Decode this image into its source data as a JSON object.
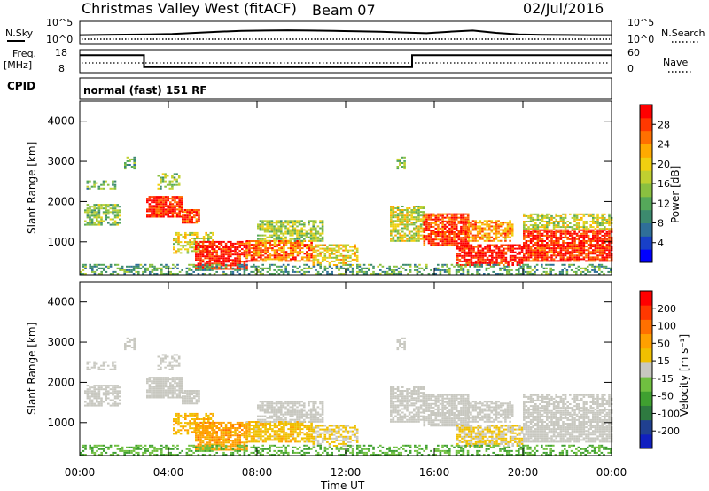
{
  "header": {
    "station": "Christmas Valley West (fitACF)",
    "beam": "Beam 07",
    "date": "02/Jul/2016",
    "cpid_label": "CPID",
    "cpid_value": "normal (fast) 151 RF"
  },
  "panels": {
    "nsky": {
      "left_label": "N.Sky",
      "top_tick": "10^5",
      "bottom_tick": "10^0",
      "right_label": "N.Search",
      "right_top_tick": "10^5",
      "right_bottom_tick": "10^0"
    },
    "freq": {
      "left_label_1": "Freq.",
      "left_label_2": "[MHz]",
      "top_tick": "18",
      "bottom_tick": "8",
      "right_label": "Nave",
      "right_top_tick": "60",
      "right_bottom_tick": "0"
    }
  },
  "chart_data": [
    {
      "type": "heatmap",
      "name": "power",
      "ylabel": "Slant Range [km]",
      "xlabel": "",
      "x_ticks": [
        "00:00",
        "04:00",
        "08:00",
        "12:00",
        "16:00",
        "20:00",
        "00:00"
      ],
      "y_ticks": [
        "1000",
        "2000",
        "3000",
        "4000"
      ],
      "ylim": [
        180,
        4500
      ],
      "xlim_hours": [
        0,
        24
      ],
      "colorbar": {
        "label": "Power [dB]",
        "ticks": [
          "28",
          "24",
          "20",
          "16",
          "12",
          "8",
          "4"
        ],
        "colors": [
          "#0000ff",
          "#1840c8",
          "#2f6f99",
          "#3c8a6e",
          "#55a85a",
          "#8ac040",
          "#c0d030",
          "#f0d010",
          "#ffaa00",
          "#ff7000",
          "#ff3800",
          "#ff0000"
        ]
      }
    },
    {
      "type": "heatmap",
      "name": "velocity",
      "ylabel": "Slant Range [km]",
      "xlabel": "Time UT",
      "x_ticks": [
        "00:00",
        "04:00",
        "08:00",
        "12:00",
        "16:00",
        "20:00",
        "00:00"
      ],
      "y_ticks": [
        "1000",
        "2000",
        "3000",
        "4000"
      ],
      "ylim": [
        180,
        4500
      ],
      "xlim_hours": [
        0,
        24
      ],
      "colorbar": {
        "label": "Velocity [m s⁻¹]",
        "ticks": [
          "200",
          "100",
          "50",
          "15",
          "-15",
          "-50",
          "-100",
          "-200"
        ],
        "colors": [
          "#1020c0",
          "#204090",
          "#2e7a40",
          "#3fa030",
          "#70c040",
          "#c8c8c0",
          "#f0c000",
          "#ffa000",
          "#ff7000",
          "#ff3800",
          "#ff0000"
        ]
      }
    }
  ],
  "nsky_series": [
    0.38,
    0.4,
    0.41,
    0.42,
    0.44,
    0.5,
    0.56,
    0.6,
    0.62,
    0.63,
    0.62,
    0.6,
    0.58,
    0.56,
    0.52,
    0.48,
    0.56,
    0.62,
    0.5,
    0.42,
    0.4,
    0.39,
    0.38,
    0.38
  ],
  "freq_series": {
    "hours": [
      0,
      2.9,
      2.9,
      15.0,
      15.0,
      24
    ],
    "mhz": [
      15.8,
      15.8,
      10.2,
      10.2,
      15.8,
      15.8
    ]
  }
}
